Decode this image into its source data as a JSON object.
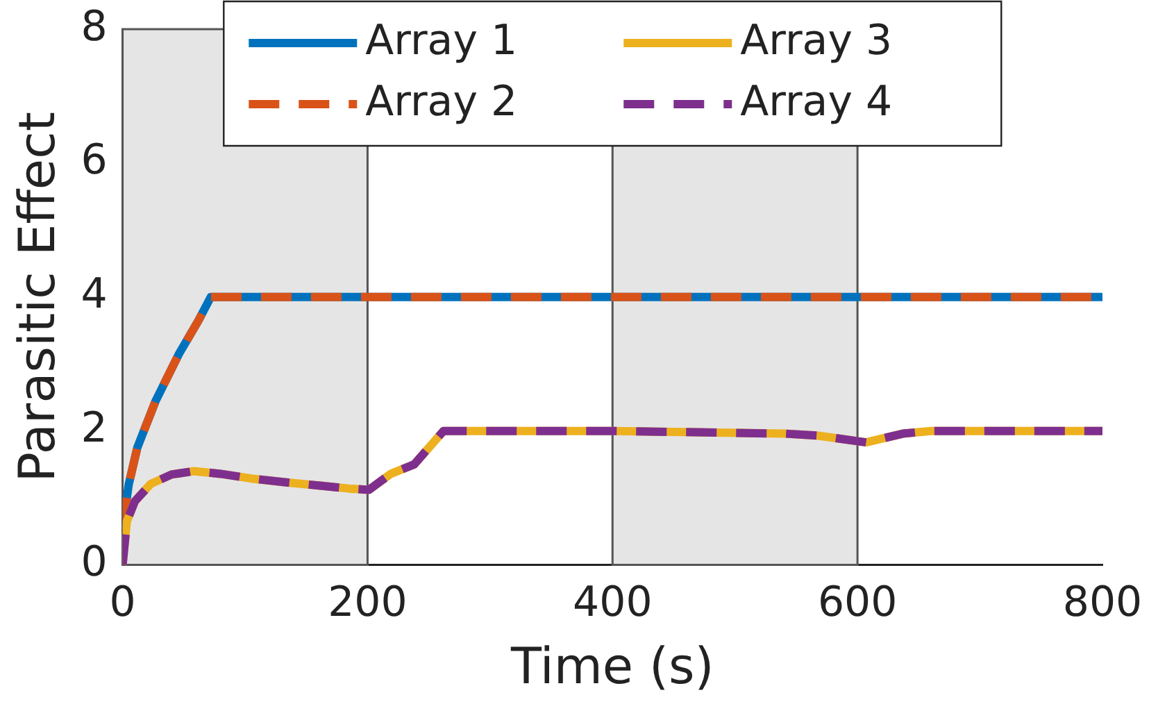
{
  "chart_data": {
    "type": "line",
    "xlabel": "Time (s)",
    "ylabel": "Parasitic Effect",
    "xlim": [
      0,
      800
    ],
    "xticks": [
      0,
      200,
      400,
      600,
      800
    ],
    "ylim": [
      0,
      8
    ],
    "yticks": [
      0,
      2,
      4,
      6,
      8
    ],
    "grid": false,
    "legend": "top",
    "marker": "none",
    "bands": [
      {
        "axis": "x",
        "from": 0,
        "to": 200,
        "color": "#e5e5e5"
      },
      {
        "axis": "x",
        "from": 400,
        "to": 600,
        "color": "#e5e5e5"
      }
    ],
    "series": [
      {
        "name": "Array 1",
        "color": "#0072bd",
        "line_style": "solid",
        "x": [
          0,
          5,
          12,
          27,
          46,
          62,
          72,
          800
        ],
        "values": [
          0.55,
          1.2,
          1.75,
          2.45,
          3.15,
          3.65,
          4.0,
          4.0
        ]
      },
      {
        "name": "Array 2",
        "color": "#d95319",
        "line_style": "dashed",
        "x": [
          0,
          5,
          12,
          27,
          46,
          62,
          72,
          800
        ],
        "values": [
          0.55,
          1.2,
          1.75,
          2.45,
          3.15,
          3.65,
          4.0,
          4.0
        ]
      },
      {
        "name": "Array 3",
        "color": "#edb120",
        "line_style": "solid",
        "x": [
          0,
          3.5,
          10,
          23,
          40,
          58,
          80,
          105,
          135,
          163,
          185,
          201,
          219,
          238,
          262,
          400,
          541,
          568,
          607,
          637,
          660,
          800
        ],
        "values": [
          0,
          0.65,
          0.95,
          1.21,
          1.35,
          1.4,
          1.36,
          1.29,
          1.23,
          1.18,
          1.14,
          1.12,
          1.36,
          1.5,
          2.0,
          2.0,
          1.96,
          1.93,
          1.83,
          1.96,
          2.0,
          2.0
        ]
      },
      {
        "name": "Array 4",
        "color": "#7e2f8e",
        "line_style": "dashed",
        "x": [
          0,
          3.5,
          10,
          23,
          40,
          58,
          80,
          105,
          135,
          163,
          185,
          201,
          219,
          238,
          262,
          400,
          541,
          568,
          607,
          637,
          660,
          800
        ],
        "values": [
          0,
          0.65,
          0.95,
          1.21,
          1.35,
          1.4,
          1.36,
          1.29,
          1.23,
          1.18,
          1.14,
          1.12,
          1.36,
          1.5,
          2.0,
          2.0,
          1.96,
          1.93,
          1.83,
          1.96,
          2.0,
          2.0
        ]
      }
    ]
  }
}
